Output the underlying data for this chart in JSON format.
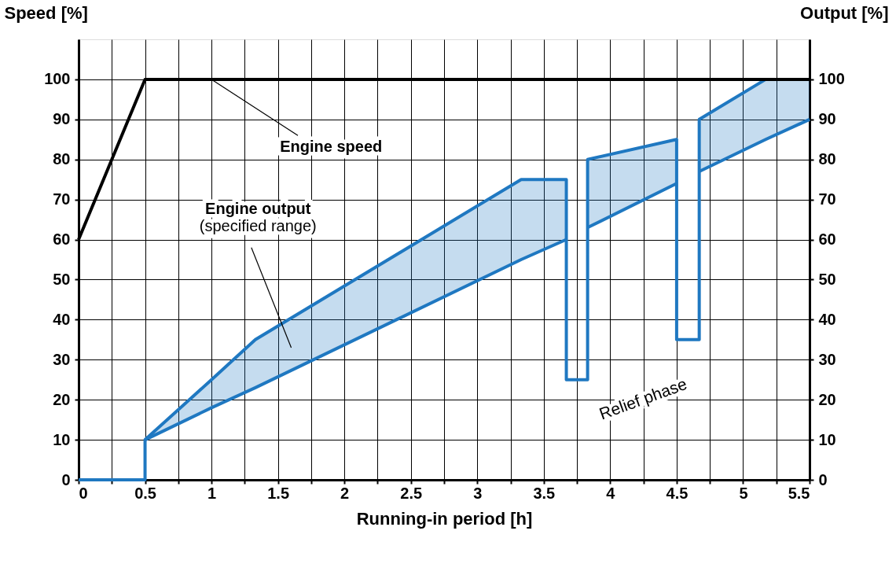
{
  "chart_data": {
    "type": "line",
    "xlabel": "Running-in period [h]",
    "ylabel": "Speed [%]",
    "y2label": "Output [%]",
    "xlim": [
      0,
      5.5
    ],
    "xticks": [
      0,
      {
        "value": 0.25,
        "label": null
      },
      0.5,
      {
        "value": 0.75,
        "label": null
      },
      1,
      {
        "value": 1.25,
        "label": null
      },
      1.5,
      {
        "value": 1.75,
        "label": null
      },
      2,
      {
        "value": 2.25,
        "label": null
      },
      2.5,
      {
        "value": 2.75,
        "label": null
      },
      3,
      {
        "value": 3.25,
        "label": null
      },
      3.5,
      {
        "value": 3.75,
        "label": null
      },
      4,
      {
        "value": 4.25,
        "label": null
      },
      4.5,
      {
        "value": 4.75,
        "label": null
      },
      5,
      {
        "value": 5.25,
        "label": null
      },
      5.5
    ],
    "ylim": [
      0,
      110
    ],
    "yticks": [
      0,
      10,
      20,
      30,
      40,
      50,
      60,
      70,
      80,
      90,
      100
    ],
    "y2lim": [
      0,
      110
    ],
    "y2ticks": [
      0,
      10,
      20,
      30,
      40,
      50,
      60,
      70,
      80,
      90,
      100
    ],
    "grid": true,
    "line_style": "solid",
    "marker": "none",
    "series": [
      {
        "axis": "y2",
        "color": "#1f78c1",
        "x": [
          0.5,
          1,
          1.33,
          3.33,
          3.67,
          3.75,
          3.83,
          4.5,
          4.58,
          4.67,
          5.17,
          5.5
        ],
        "values": [
          10,
          18,
          23,
          55,
          60,
          null,
          63,
          74,
          null,
          77,
          85,
          90
        ],
        "lower": [
          10,
          18,
          23,
          55,
          60,
          null,
          63,
          74,
          null,
          77,
          85,
          90
        ],
        "upper": [
          10,
          25,
          35,
          75,
          75,
          null,
          80,
          85,
          null,
          90,
          100,
          100
        ]
      },
      {
        "axis": "y2",
        "color": "#1f78c1",
        "x": [
          0,
          0.5,
          0.5,
          1,
          1.33,
          3.33,
          3.67,
          3.67,
          3.83,
          3.83,
          4.5,
          4.5,
          4.67,
          4.67,
          5.17,
          5.5
        ],
        "values": [
          0,
          0,
          10,
          25,
          35,
          75,
          75,
          25,
          25,
          80,
          85,
          35,
          35,
          90,
          100,
          100
        ]
      },
      {
        "axis": "y",
        "color": "#000000",
        "x": [
          0,
          0.5,
          5.5
        ],
        "values": [
          60,
          100,
          100
        ]
      }
    ],
    "annotations": [
      {
        "text": "Engine speed",
        "x": 1,
        "y": 100
      },
      "Engine output\n(specified range)",
      "Relief phase"
    ]
  }
}
